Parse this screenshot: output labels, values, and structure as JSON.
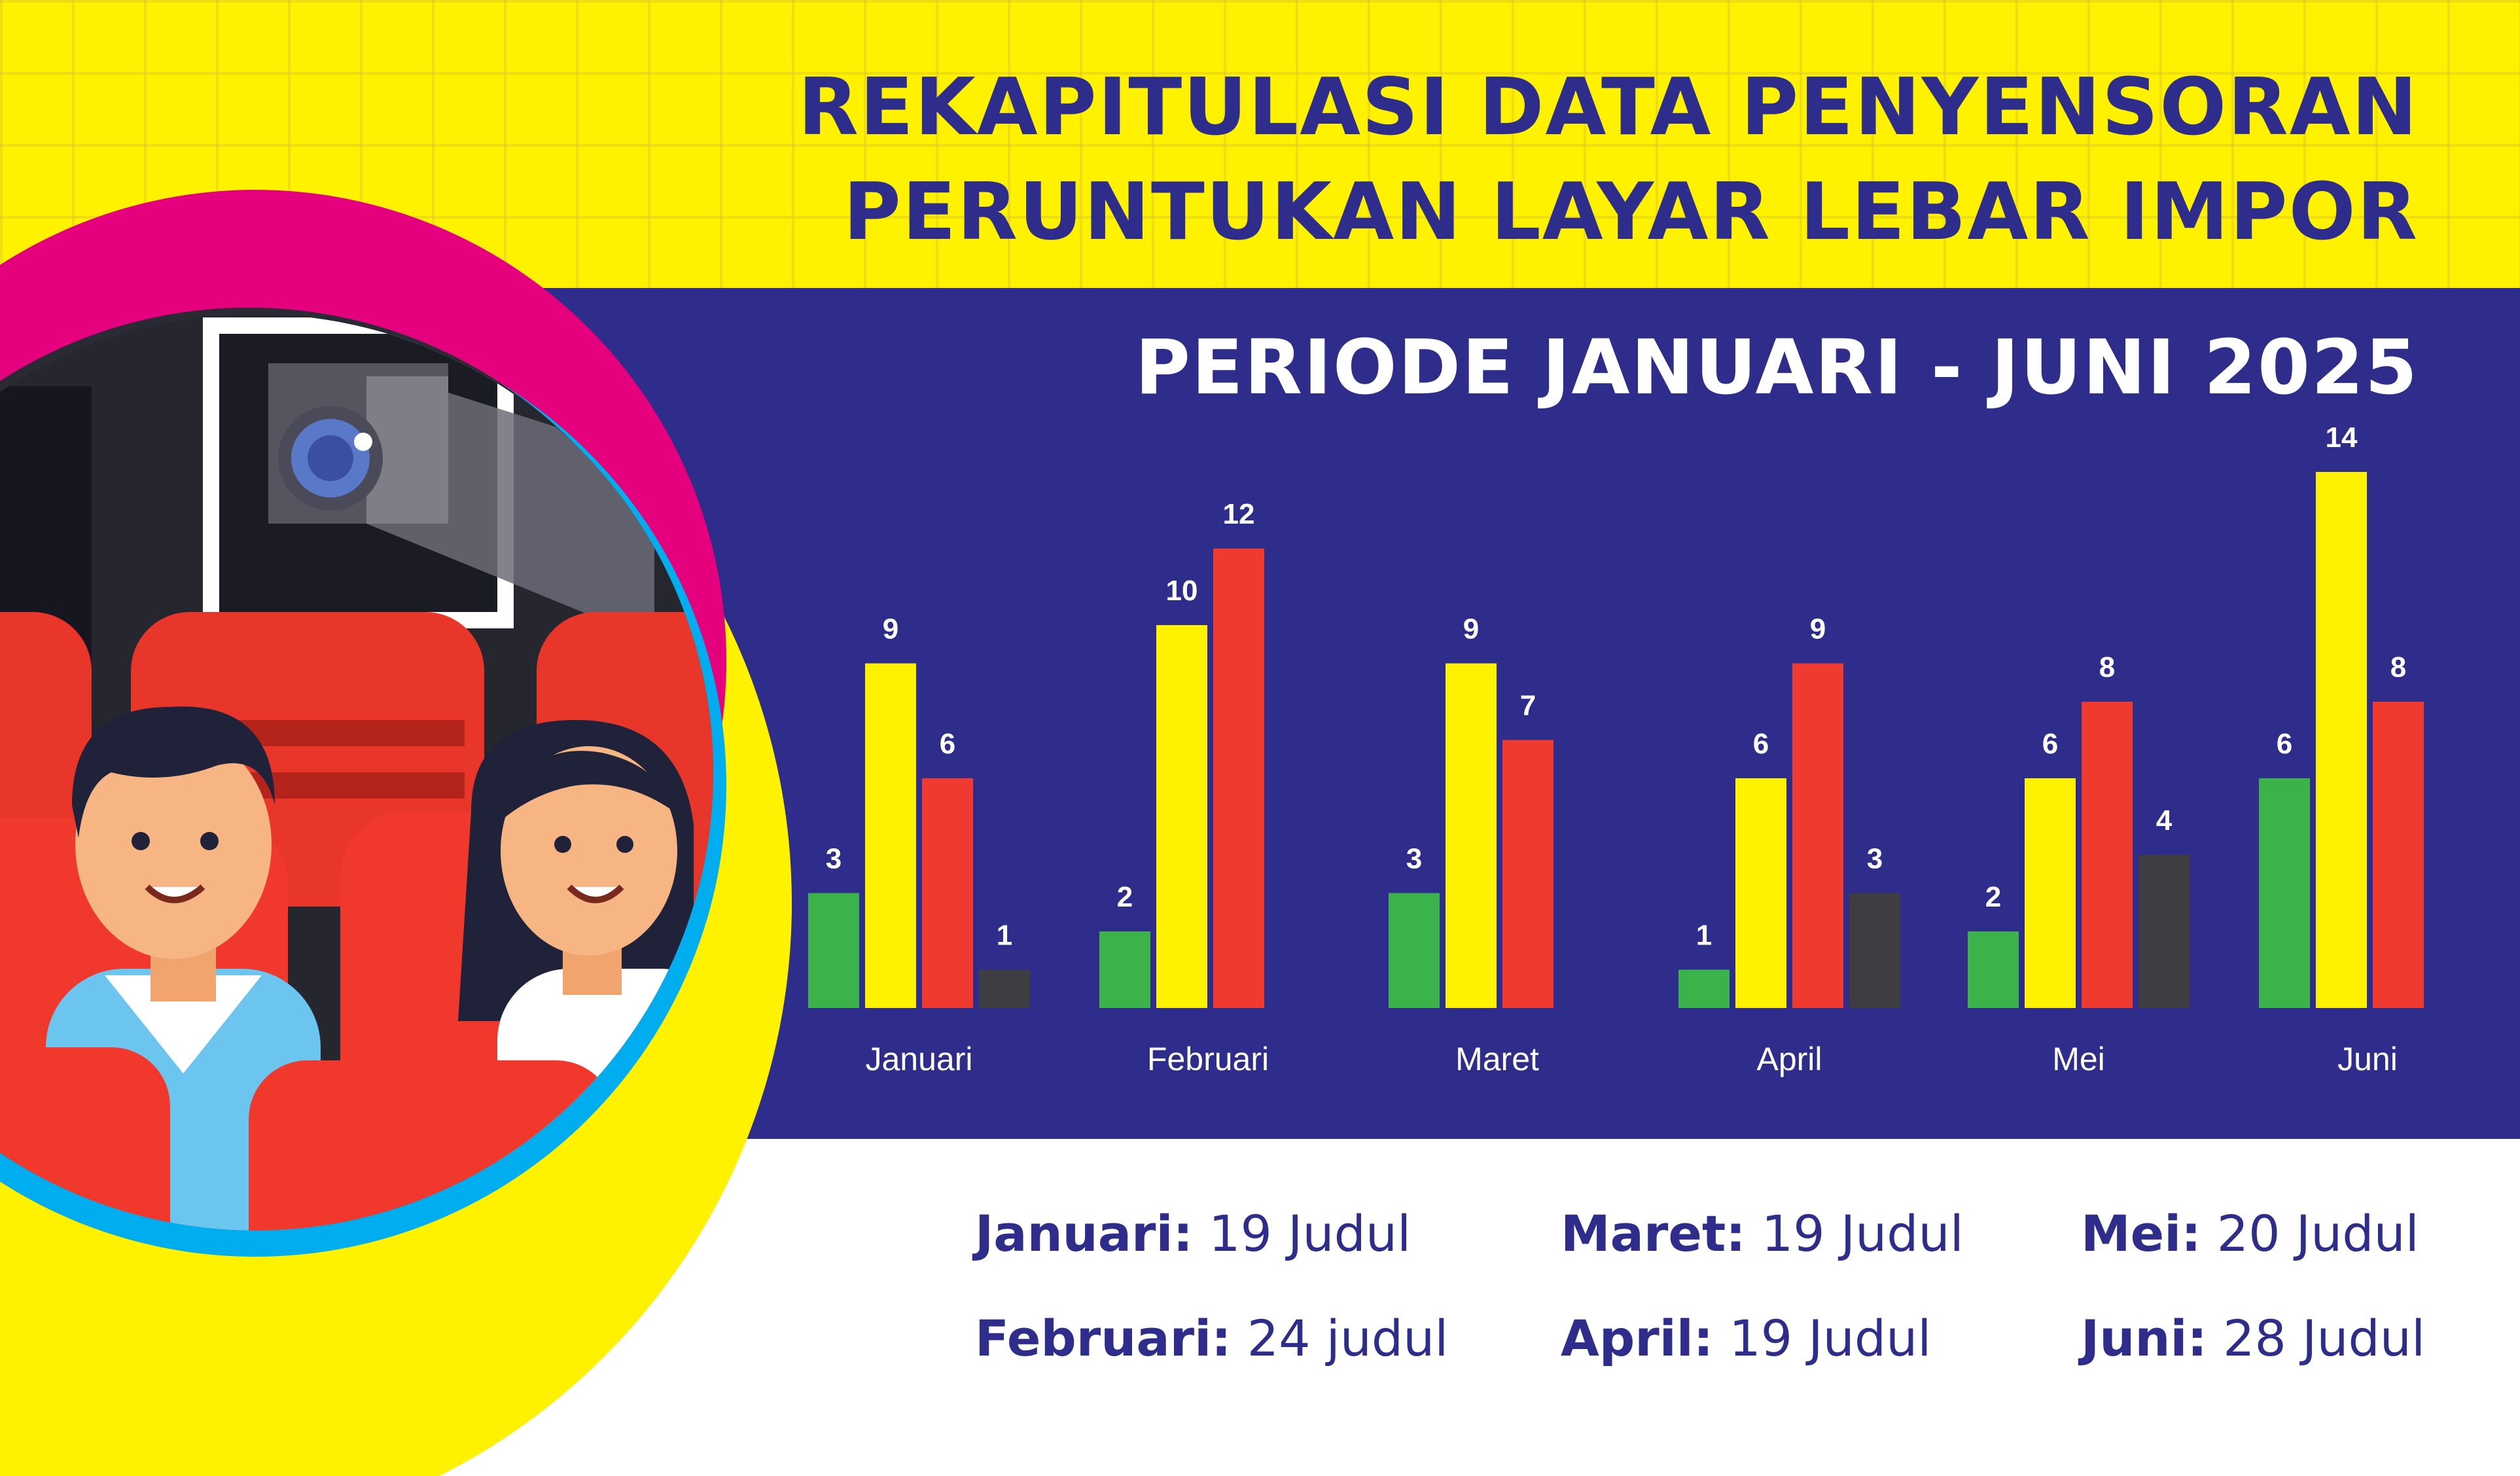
{
  "header": {
    "title_line1": "REKAPITULASI DATA PENYENSORAN",
    "title_line2": "PERUNTUKAN LAYAR LEBAR IMPOR",
    "subtitle": "PERIODE JANUARI - JUNI 2025"
  },
  "colors": {
    "navy": "#2e2d8c",
    "background_yellow": "#fff200",
    "green": "#3cb34a",
    "yellow": "#fff200",
    "red": "#f03a2f",
    "dark_gray": "#3d3d42",
    "magenta": "#e5007e",
    "cyan": "#00aeef"
  },
  "chart_data": {
    "type": "bar",
    "categories": [
      "Januari",
      "Februari",
      "Maret",
      "April",
      "Mei",
      "Juni"
    ],
    "series": [
      {
        "color": "#3cb34a",
        "values": [
          3,
          2,
          3,
          1,
          2,
          6
        ]
      },
      {
        "color": "#fff200",
        "values": [
          9,
          10,
          9,
          6,
          6,
          14
        ]
      },
      {
        "color": "#f03a2f",
        "values": [
          6,
          12,
          7,
          9,
          8,
          8
        ]
      },
      {
        "color": "#3d3d42",
        "values": [
          1,
          null,
          null,
          3,
          4,
          null
        ]
      }
    ],
    "ylim": [
      0,
      14
    ],
    "grid": false,
    "legend": "none"
  },
  "summary": [
    {
      "month": "Januari:",
      "count": "19 Judul"
    },
    {
      "month": "Februari:",
      "count": "24 judul"
    },
    {
      "month": "Maret:",
      "count": "19 Judul"
    },
    {
      "month": "April:",
      "count": "19 Judul"
    },
    {
      "month": "Mei:",
      "count": "20 Judul"
    },
    {
      "month": "Juni:",
      "count": "28 Judul"
    }
  ]
}
